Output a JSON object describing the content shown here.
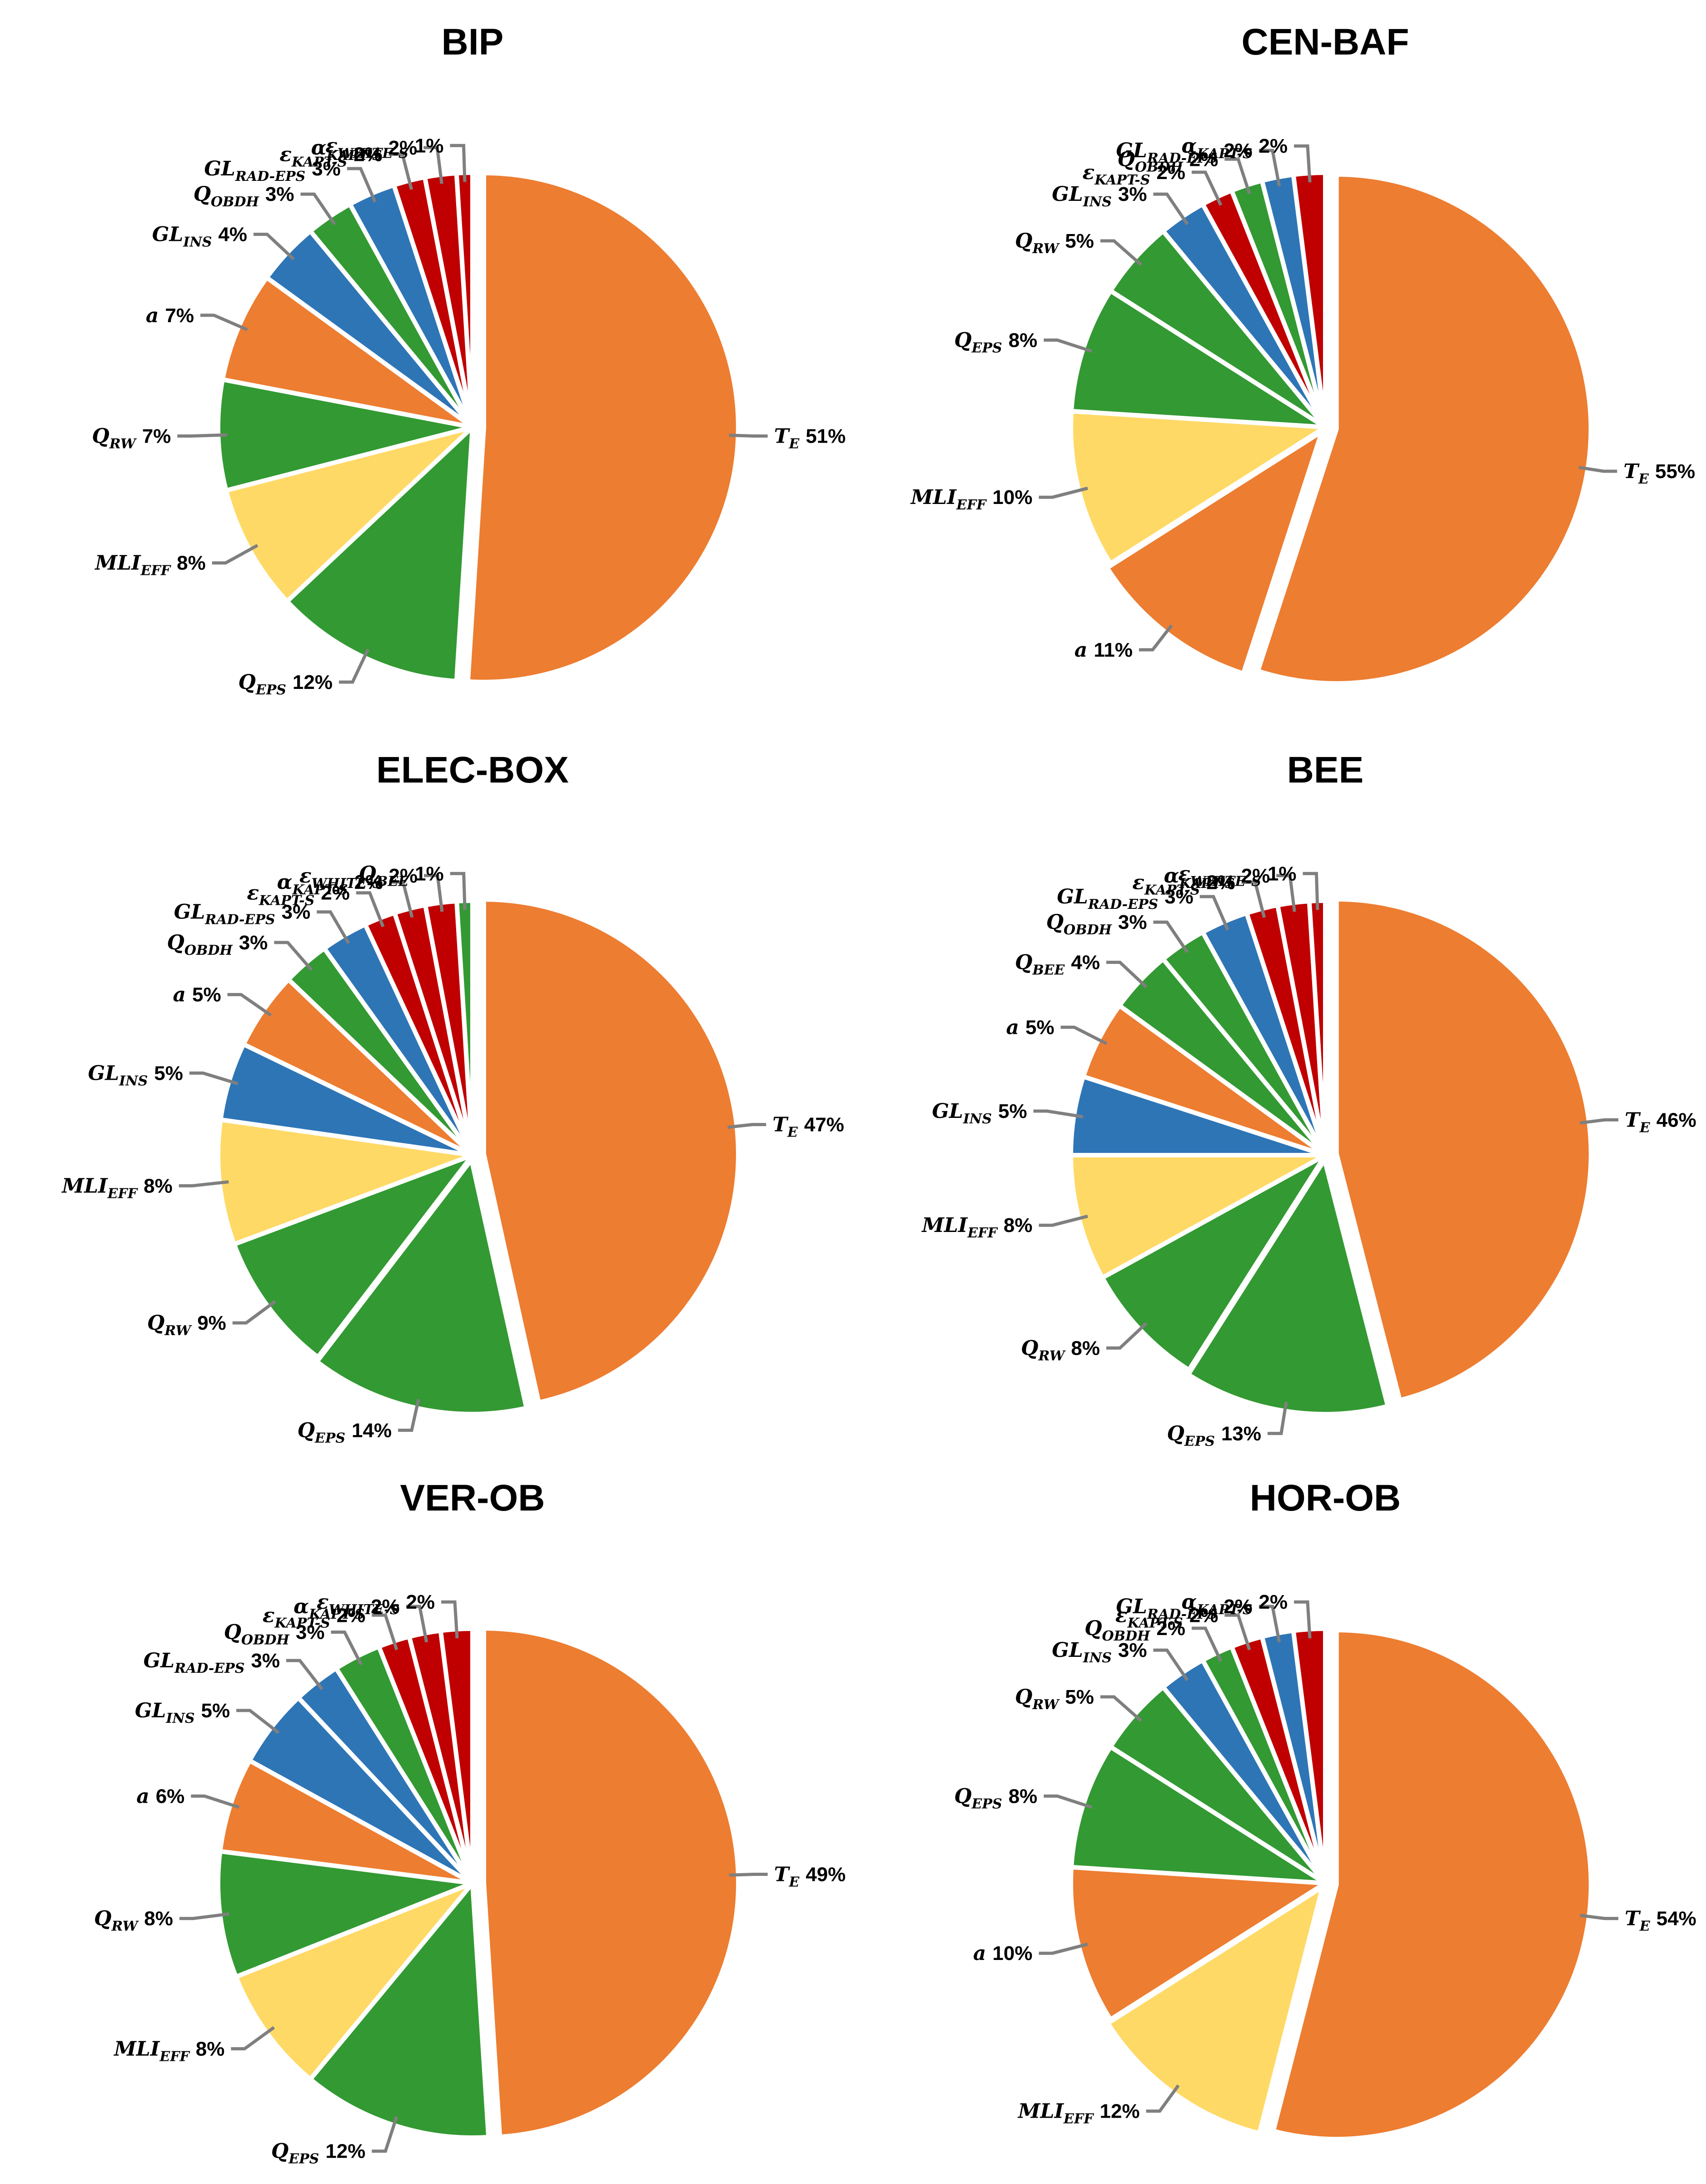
{
  "colors": {
    "orange": "#ED7D31",
    "green": "#339933",
    "blue": "#2E75B6",
    "red": "#C00000",
    "yellow": "#FFD966"
  },
  "chart_data": [
    {
      "type": "pie",
      "title": "BIP",
      "slices": [
        {
          "name": "T",
          "sub": "E",
          "value": 51,
          "label": "51%",
          "color": "orange",
          "explode": 25
        },
        {
          "name": "Q",
          "sub": "EPS",
          "value": 12,
          "label": "12%",
          "color": "green",
          "explode": 0
        },
        {
          "name": "MLI",
          "sub": "EFF",
          "value": 8,
          "label": "8%",
          "color": "yellow",
          "explode": 0
        },
        {
          "name": "Q",
          "sub": "RW",
          "value": 7,
          "label": "7%",
          "color": "green",
          "explode": 0
        },
        {
          "name": "a",
          "sub": "",
          "value": 7,
          "label": "7%",
          "color": "orange",
          "explode": 0
        },
        {
          "name": "GL",
          "sub": "INS",
          "value": 4,
          "label": "4%",
          "color": "blue",
          "explode": 0
        },
        {
          "name": "Q",
          "sub": "OBDH",
          "value": 3,
          "label": "3%",
          "color": "green",
          "explode": 0
        },
        {
          "name": "GL",
          "sub": "RAD-EPS",
          "value": 3,
          "label": "3%",
          "color": "blue",
          "explode": 0
        },
        {
          "name": "ε",
          "sub": "KAPT-S",
          "value": 2,
          "label": "2%",
          "color": "red",
          "explode": 0
        },
        {
          "name": "α",
          "sub": "KAPT-S",
          "value": 2,
          "label": "2%",
          "color": "red",
          "explode": 0
        },
        {
          "name": "ε",
          "sub": "WHITE-S",
          "value": 1,
          "label": "1%",
          "color": "red",
          "explode": 0
        }
      ]
    },
    {
      "type": "pie",
      "title": "CEN-BAF",
      "slices": [
        {
          "name": "T",
          "sub": "E",
          "value": 55,
          "label": "55%",
          "color": "orange",
          "explode": 25
        },
        {
          "name": "a",
          "sub": "",
          "value": 11,
          "label": "11%",
          "color": "orange",
          "explode": 12
        },
        {
          "name": "MLI",
          "sub": "EFF",
          "value": 10,
          "label": "10%",
          "color": "yellow",
          "explode": 0
        },
        {
          "name": "Q",
          "sub": "EPS",
          "value": 8,
          "label": "8%",
          "color": "green",
          "explode": 0
        },
        {
          "name": "Q",
          "sub": "RW",
          "value": 5,
          "label": "5%",
          "color": "green",
          "explode": 0
        },
        {
          "name": "GL",
          "sub": "INS",
          "value": 3,
          "label": "3%",
          "color": "blue",
          "explode": 0
        },
        {
          "name": "ε",
          "sub": "KAPT-S",
          "value": 2,
          "label": "2%",
          "color": "red",
          "explode": 0
        },
        {
          "name": "Q",
          "sub": "OBDH",
          "value": 2,
          "label": "2%",
          "color": "green",
          "explode": 0
        },
        {
          "name": "GL",
          "sub": "RAD-EPS",
          "value": 2,
          "label": "2%",
          "color": "blue",
          "explode": 0
        },
        {
          "name": "α",
          "sub": "KAPT-S",
          "value": 2,
          "label": "2%",
          "color": "red",
          "explode": 0
        }
      ]
    },
    {
      "type": "pie",
      "title": "ELEC-BOX",
      "slices": [
        {
          "name": "T",
          "sub": "E",
          "value": 47,
          "label": "47%",
          "color": "orange",
          "explode": 25
        },
        {
          "name": "Q",
          "sub": "EPS",
          "value": 14,
          "label": "14%",
          "color": "green",
          "explode": 10
        },
        {
          "name": "Q",
          "sub": "RW",
          "value": 9,
          "label": "9%",
          "color": "green",
          "explode": 0
        },
        {
          "name": "MLI",
          "sub": "EFF",
          "value": 8,
          "label": "8%",
          "color": "yellow",
          "explode": 0
        },
        {
          "name": "GL",
          "sub": "INS",
          "value": 5,
          "label": "5%",
          "color": "blue",
          "explode": 0
        },
        {
          "name": "a",
          "sub": "",
          "value": 5,
          "label": "5%",
          "color": "orange",
          "explode": 0
        },
        {
          "name": "Q",
          "sub": "OBDH",
          "value": 3,
          "label": "3%",
          "color": "green",
          "explode": 0
        },
        {
          "name": "GL",
          "sub": "RAD-EPS",
          "value": 3,
          "label": "3%",
          "color": "blue",
          "explode": 0
        },
        {
          "name": "ε",
          "sub": "KAPT-S",
          "value": 2,
          "label": "2%",
          "color": "red",
          "explode": 0
        },
        {
          "name": "α",
          "sub": "KAPT-S",
          "value": 2,
          "label": "2%",
          "color": "red",
          "explode": 0
        },
        {
          "name": "ε",
          "sub": "WHITE-S",
          "value": 2,
          "label": "2%",
          "color": "red",
          "explode": 0
        },
        {
          "name": "Q",
          "sub": "BEE",
          "value": 1,
          "label": "1%",
          "color": "green",
          "explode": 0
        }
      ]
    },
    {
      "type": "pie",
      "title": "BEE",
      "slices": [
        {
          "name": "T",
          "sub": "E",
          "value": 46,
          "label": "46%",
          "color": "orange",
          "explode": 25
        },
        {
          "name": "Q",
          "sub": "EPS",
          "value": 13,
          "label": "13%",
          "color": "green",
          "explode": 10
        },
        {
          "name": "Q",
          "sub": "RW",
          "value": 8,
          "label": "8%",
          "color": "green",
          "explode": 0
        },
        {
          "name": "MLI",
          "sub": "EFF",
          "value": 8,
          "label": "8%",
          "color": "yellow",
          "explode": 0
        },
        {
          "name": "GL",
          "sub": "INS",
          "value": 5,
          "label": "5%",
          "color": "blue",
          "explode": 0
        },
        {
          "name": "a",
          "sub": "",
          "value": 5,
          "label": "5%",
          "color": "orange",
          "explode": 0
        },
        {
          "name": "Q",
          "sub": "BEE",
          "value": 4,
          "label": "4%",
          "color": "green",
          "explode": 0
        },
        {
          "name": "Q",
          "sub": "OBDH",
          "value": 3,
          "label": "3%",
          "color": "green",
          "explode": 0
        },
        {
          "name": "GL",
          "sub": "RAD-EPS",
          "value": 3,
          "label": "3%",
          "color": "blue",
          "explode": 0
        },
        {
          "name": "ε",
          "sub": "KAPT-S",
          "value": 2,
          "label": "2%",
          "color": "red",
          "explode": 0
        },
        {
          "name": "α",
          "sub": "KAPT-S",
          "value": 2,
          "label": "2%",
          "color": "red",
          "explode": 0
        },
        {
          "name": "ε",
          "sub": "WHITE-S",
          "value": 1,
          "label": "1%",
          "color": "red",
          "explode": 0
        }
      ]
    },
    {
      "type": "pie",
      "title": "VER-OB",
      "slices": [
        {
          "name": "T",
          "sub": "E",
          "value": 49,
          "label": "49%",
          "color": "orange",
          "explode": 25
        },
        {
          "name": "Q",
          "sub": "EPS",
          "value": 12,
          "label": "12%",
          "color": "green",
          "explode": 0
        },
        {
          "name": "MLI",
          "sub": "EFF",
          "value": 8,
          "label": "8%",
          "color": "yellow",
          "explode": 0
        },
        {
          "name": "Q",
          "sub": "RW",
          "value": 8,
          "label": "8%",
          "color": "green",
          "explode": 0
        },
        {
          "name": "a",
          "sub": "",
          "value": 6,
          "label": "6%",
          "color": "orange",
          "explode": 0
        },
        {
          "name": "GL",
          "sub": "INS",
          "value": 5,
          "label": "5%",
          "color": "blue",
          "explode": 0
        },
        {
          "name": "GL",
          "sub": "RAD-EPS",
          "value": 3,
          "label": "3%",
          "color": "blue",
          "explode": 0
        },
        {
          "name": "Q",
          "sub": "OBDH",
          "value": 3,
          "label": "3%",
          "color": "green",
          "explode": 0
        },
        {
          "name": "ε",
          "sub": "KAPT-S",
          "value": 2,
          "label": "2%",
          "color": "red",
          "explode": 0
        },
        {
          "name": "α",
          "sub": "KAPT-S",
          "value": 2,
          "label": "2%",
          "color": "red",
          "explode": 0
        },
        {
          "name": "ε",
          "sub": "WHITE-S",
          "value": 2,
          "label": "2%",
          "color": "red",
          "explode": 0
        }
      ]
    },
    {
      "type": "pie",
      "title": "HOR-OB",
      "slices": [
        {
          "name": "T",
          "sub": "E",
          "value": 54,
          "label": "54%",
          "color": "orange",
          "explode": 25
        },
        {
          "name": "MLI",
          "sub": "EFF",
          "value": 12,
          "label": "12%",
          "color": "yellow",
          "explode": 10
        },
        {
          "name": "a",
          "sub": "",
          "value": 10,
          "label": "10%",
          "color": "orange",
          "explode": 0
        },
        {
          "name": "Q",
          "sub": "EPS",
          "value": 8,
          "label": "8%",
          "color": "green",
          "explode": 0
        },
        {
          "name": "Q",
          "sub": "RW",
          "value": 5,
          "label": "5%",
          "color": "green",
          "explode": 0
        },
        {
          "name": "GL",
          "sub": "INS",
          "value": 3,
          "label": "3%",
          "color": "blue",
          "explode": 0
        },
        {
          "name": "Q",
          "sub": "OBDH",
          "value": 2,
          "label": "2%",
          "color": "green",
          "explode": 0
        },
        {
          "name": "ε",
          "sub": "KAPT-S",
          "value": 2,
          "label": "2%",
          "color": "red",
          "explode": 0
        },
        {
          "name": "GL",
          "sub": "RAD-EPS",
          "value": 2,
          "label": "2%",
          "color": "blue",
          "explode": 0
        },
        {
          "name": "α",
          "sub": "KAPT-S",
          "value": 2,
          "label": "2%",
          "color": "red",
          "explode": 0
        }
      ]
    }
  ]
}
